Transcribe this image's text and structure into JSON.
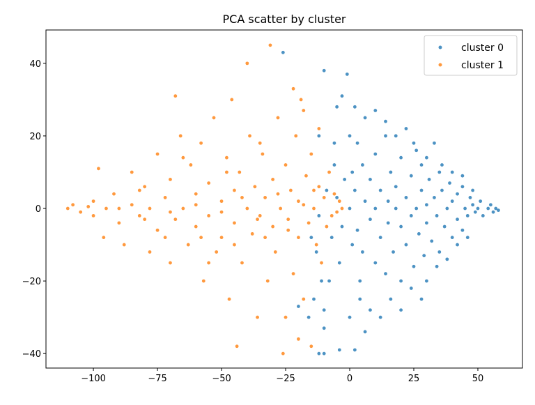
{
  "chart_data": {
    "type": "scatter",
    "title": "PCA scatter by cluster",
    "xlabel": "",
    "ylabel": "",
    "xlim": [
      -118.5,
      67.4
    ],
    "ylim": [
      -44,
      49.2
    ],
    "xticks": [
      -100,
      -75,
      -50,
      -25,
      0,
      25,
      50
    ],
    "yticks": [
      -40,
      -20,
      0,
      20,
      40
    ],
    "xtick_labels": [
      "−100",
      "−75",
      "−50",
      "−25",
      "0",
      "25",
      "50"
    ],
    "ytick_labels": [
      "−40",
      "−20",
      "0",
      "20",
      "40"
    ],
    "grid": false,
    "legend_placement": "top-right",
    "series": [
      {
        "name": "cluster 0",
        "color": "#1f77b4",
        "points": [
          [
            0,
            0
          ],
          [
            2,
            5
          ],
          [
            3,
            -6
          ],
          [
            5,
            12
          ],
          [
            5,
            -12
          ],
          [
            6,
            2
          ],
          [
            8,
            -3
          ],
          [
            8,
            8
          ],
          [
            10,
            15
          ],
          [
            10,
            -15
          ],
          [
            10,
            0
          ],
          [
            12,
            5
          ],
          [
            12,
            -8
          ],
          [
            14,
            20
          ],
          [
            14,
            -18
          ],
          [
            15,
            2
          ],
          [
            15,
            -4
          ],
          [
            16,
            10
          ],
          [
            17,
            -12
          ],
          [
            18,
            0
          ],
          [
            18,
            6
          ],
          [
            20,
            -5
          ],
          [
            20,
            14
          ],
          [
            20,
            -20
          ],
          [
            22,
            3
          ],
          [
            22,
            -10
          ],
          [
            24,
            9
          ],
          [
            24,
            -2
          ],
          [
            25,
            18
          ],
          [
            25,
            -16
          ],
          [
            26,
            0
          ],
          [
            27,
            -7
          ],
          [
            28,
            5
          ],
          [
            28,
            12
          ],
          [
            29,
            -13
          ],
          [
            30,
            1
          ],
          [
            30,
            -4
          ],
          [
            31,
            8
          ],
          [
            32,
            -9
          ],
          [
            33,
            3
          ],
          [
            34,
            -2
          ],
          [
            35,
            10
          ],
          [
            35,
            -12
          ],
          [
            36,
            5
          ],
          [
            37,
            -5
          ],
          [
            38,
            0
          ],
          [
            39,
            7
          ],
          [
            40,
            -8
          ],
          [
            40,
            2
          ],
          [
            42,
            4
          ],
          [
            42,
            -3
          ],
          [
            44,
            -6
          ],
          [
            44,
            6
          ],
          [
            45,
            0
          ],
          [
            46,
            -2
          ],
          [
            47,
            3
          ],
          [
            48,
            1
          ],
          [
            49,
            -1
          ],
          [
            50,
            0
          ],
          [
            51,
            2
          ],
          [
            52,
            -2
          ],
          [
            54,
            0
          ],
          [
            55,
            1
          ],
          [
            56,
            -1
          ],
          [
            57,
            0
          ],
          [
            58,
            -0.5
          ],
          [
            1,
            10
          ],
          [
            1,
            -10
          ],
          [
            3,
            18
          ],
          [
            4,
            -20
          ],
          [
            -2,
            8
          ],
          [
            -3,
            -5
          ],
          [
            -5,
            3
          ],
          [
            -4,
            -15
          ],
          [
            -6,
            12
          ],
          [
            -8,
            -20
          ],
          [
            -7,
            -8
          ],
          [
            -9,
            5
          ],
          [
            -10,
            -28
          ],
          [
            -10,
            -33
          ],
          [
            -12,
            -40
          ],
          [
            -1,
            37
          ],
          [
            -3,
            31
          ],
          [
            -5,
            28
          ],
          [
            0,
            -30
          ],
          [
            2,
            -39
          ],
          [
            6,
            -34
          ],
          [
            8,
            -28
          ],
          [
            12,
            -30
          ],
          [
            16,
            -25
          ],
          [
            20,
            -28
          ],
          [
            24,
            -22
          ],
          [
            28,
            -25
          ],
          [
            30,
            -20
          ],
          [
            34,
            -16
          ],
          [
            38,
            -14
          ],
          [
            42,
            -10
          ],
          [
            46,
            -8
          ],
          [
            6,
            25
          ],
          [
            10,
            27
          ],
          [
            14,
            24
          ],
          [
            18,
            20
          ],
          [
            22,
            22
          ],
          [
            26,
            16
          ],
          [
            30,
            14
          ],
          [
            33,
            18
          ],
          [
            36,
            12
          ],
          [
            40,
            10
          ],
          [
            44,
            9
          ],
          [
            48,
            5
          ],
          [
            -14,
            -25
          ],
          [
            -16,
            -30
          ],
          [
            -20,
            -27
          ],
          [
            -11,
            -20
          ],
          [
            -13,
            -12
          ],
          [
            -15,
            -8
          ],
          [
            -12,
            -2
          ],
          [
            -12,
            20
          ],
          [
            2,
            28
          ],
          [
            -6,
            18
          ],
          [
            0,
            20
          ],
          [
            4,
            -25
          ],
          [
            -26,
            43
          ],
          [
            -10,
            38
          ],
          [
            -10,
            -40
          ],
          [
            -4,
            -39
          ]
        ]
      },
      {
        "name": "cluster 1",
        "color": "#ff7f0e",
        "points": [
          [
            -110,
            0
          ],
          [
            -108,
            1
          ],
          [
            -105,
            -1
          ],
          [
            -102,
            0.5
          ],
          [
            -100,
            -2
          ],
          [
            -100,
            2
          ],
          [
            -98,
            11
          ],
          [
            -96,
            -8
          ],
          [
            -95,
            0
          ],
          [
            -92,
            4
          ],
          [
            -90,
            -4
          ],
          [
            -88,
            -10
          ],
          [
            -85,
            10
          ],
          [
            -85,
            1
          ],
          [
            -82,
            -2
          ],
          [
            -80,
            6
          ],
          [
            -78,
            -12
          ],
          [
            -78,
            0
          ],
          [
            -75,
            15
          ],
          [
            -75,
            -6
          ],
          [
            -72,
            3
          ],
          [
            -70,
            -15
          ],
          [
            -70,
            8
          ],
          [
            -68,
            31
          ],
          [
            -68,
            -3
          ],
          [
            -66,
            20
          ],
          [
            -65,
            0
          ],
          [
            -63,
            -10
          ],
          [
            -62,
            12
          ],
          [
            -60,
            -5
          ],
          [
            -60,
            4
          ],
          [
            -58,
            18
          ],
          [
            -57,
            -20
          ],
          [
            -55,
            7
          ],
          [
            -55,
            -2
          ],
          [
            -53,
            25
          ],
          [
            -52,
            -12
          ],
          [
            -50,
            2
          ],
          [
            -50,
            -8
          ],
          [
            -48,
            14
          ],
          [
            -47,
            -25
          ],
          [
            -46,
            30
          ],
          [
            -45,
            -4
          ],
          [
            -45,
            5
          ],
          [
            -44,
            -38
          ],
          [
            -43,
            10
          ],
          [
            -42,
            -15
          ],
          [
            -40,
            0
          ],
          [
            -40,
            40
          ],
          [
            -39,
            20
          ],
          [
            -38,
            -7
          ],
          [
            -37,
            6
          ],
          [
            -36,
            -30
          ],
          [
            -35,
            -2
          ],
          [
            -34,
            15
          ],
          [
            -33,
            3
          ],
          [
            -32,
            -20
          ],
          [
            -31,
            45
          ],
          [
            -30,
            8
          ],
          [
            -30,
            -5
          ],
          [
            -29,
            -12
          ],
          [
            -28,
            25
          ],
          [
            -27,
            0
          ],
          [
            -26,
            -40
          ],
          [
            -25,
            12
          ],
          [
            -24,
            -3
          ],
          [
            -23,
            5
          ],
          [
            -22,
            -18
          ],
          [
            -21,
            20
          ],
          [
            -20,
            -8
          ],
          [
            -20,
            2
          ],
          [
            -19,
            30
          ],
          [
            -18,
            -25
          ],
          [
            -17,
            9
          ],
          [
            -16,
            -4
          ],
          [
            -15,
            15
          ],
          [
            -14,
            0
          ],
          [
            -13,
            -10
          ],
          [
            -12,
            6
          ],
          [
            -11,
            -15
          ],
          [
            -10,
            3
          ],
          [
            -9,
            -5
          ],
          [
            -8,
            10
          ],
          [
            -7,
            -2
          ],
          [
            -6,
            4
          ],
          [
            -5,
            -1
          ],
          [
            -4,
            2
          ],
          [
            -3,
            0
          ],
          [
            -22,
            33
          ],
          [
            -18,
            27
          ],
          [
            -12,
            22
          ],
          [
            -25,
            -30
          ],
          [
            -20,
            -36
          ],
          [
            -15,
            -38
          ],
          [
            -35,
            18
          ],
          [
            -55,
            -15
          ],
          [
            -65,
            14
          ],
          [
            -90,
            0
          ],
          [
            -80,
            -3
          ],
          [
            -70,
            -1
          ],
          [
            -60,
            1
          ],
          [
            -50,
            -1
          ],
          [
            -42,
            3
          ],
          [
            -36,
            -3
          ],
          [
            -28,
            4
          ],
          [
            -24,
            -6
          ],
          [
            -18,
            1
          ],
          [
            -14,
            5
          ],
          [
            -33,
            -8
          ],
          [
            -45,
            -10
          ],
          [
            -48,
            10
          ],
          [
            -58,
            -8
          ],
          [
            -72,
            -8
          ],
          [
            -82,
            5
          ]
        ]
      }
    ]
  }
}
